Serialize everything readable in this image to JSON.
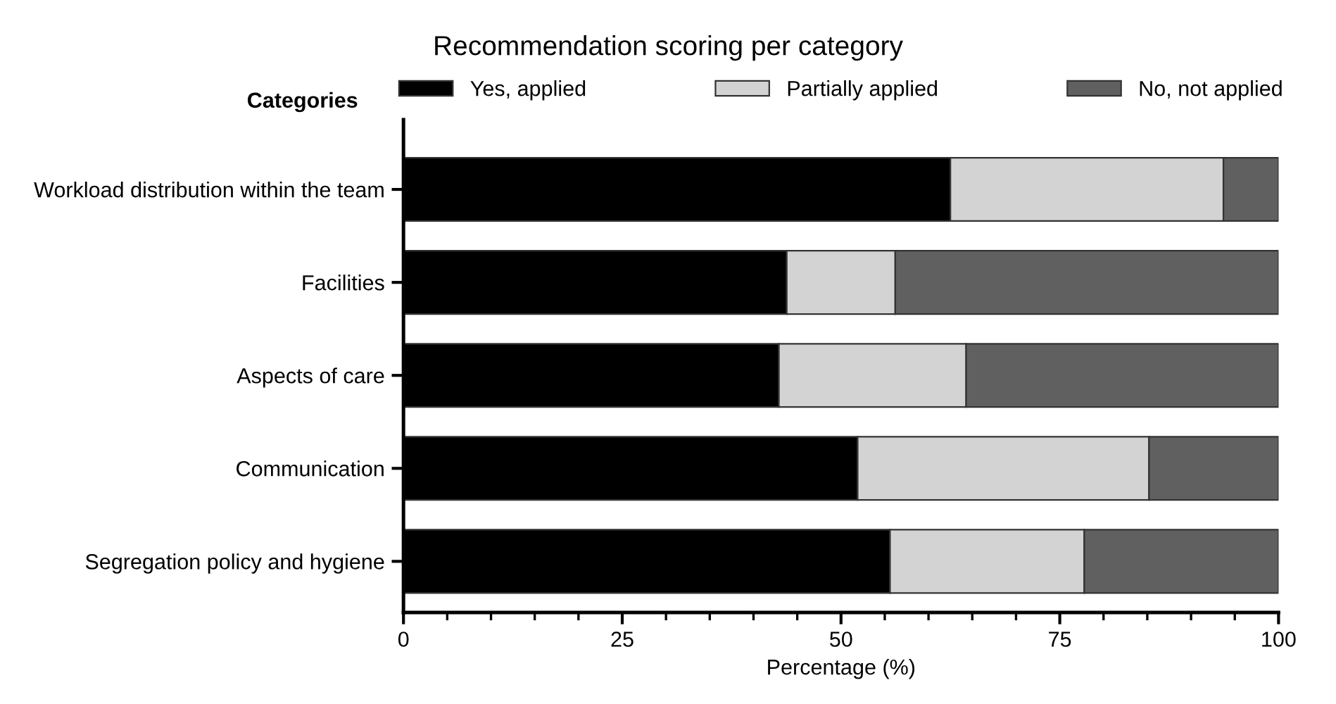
{
  "chart_data": {
    "type": "bar",
    "orientation": "horizontal",
    "stacked": true,
    "title": "Recommendation scoring per category",
    "xlabel": "Percentage (%)",
    "legend_title": "Categories",
    "categories": [
      "Workload distribution within the team",
      "Facilities",
      "Aspects of care",
      "Communication",
      "Segregation policy and hygiene"
    ],
    "series": [
      {
        "name": "Yes, applied",
        "color": "#000000",
        "values": [
          62.5,
          43.8,
          42.9,
          51.9,
          55.6
        ]
      },
      {
        "name": "Partially applied",
        "color": "#d3d3d3",
        "values": [
          31.2,
          12.4,
          21.4,
          33.3,
          22.2
        ]
      },
      {
        "name": "No, not applied",
        "color": "#606060",
        "values": [
          6.3,
          43.8,
          35.7,
          14.8,
          22.2
        ]
      }
    ],
    "xlim": [
      0,
      100
    ],
    "xticks": [
      0,
      25,
      50,
      75,
      100
    ],
    "grid": false,
    "legend": "top"
  }
}
